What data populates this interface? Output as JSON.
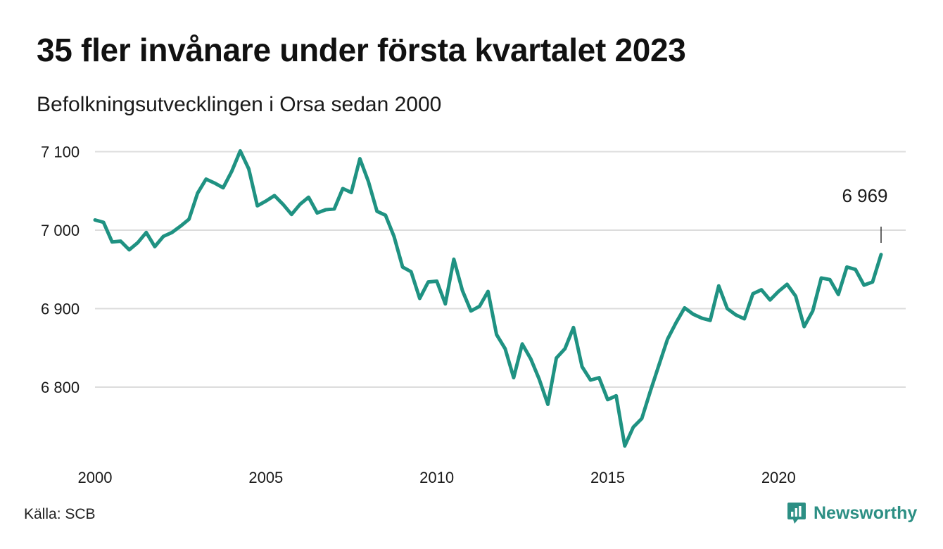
{
  "title": "35 fler invånare under första kvartalet 2023",
  "subtitle": "Befolkningsutvecklingen i Orsa sedan 2000",
  "source": "Källa: SCB",
  "brand": {
    "name": "Newsworthy",
    "icon": "newsworthy-logo-icon",
    "color": "#2c8f84"
  },
  "colors": {
    "line": "#1f9282",
    "grid": "#dcdcdc"
  },
  "chart_data": {
    "type": "line",
    "title": "35 fler invånare under första kvartalet 2023",
    "subtitle": "Befolkningsutvecklingen i Orsa sedan 2000",
    "xlabel": "",
    "ylabel": "",
    "x_ticks": [
      "2000",
      "2005",
      "2010",
      "2015",
      "2020"
    ],
    "y_ticks": [
      "6 800",
      "6 900",
      "7 000",
      "7 100"
    ],
    "ylim": [
      6700,
      7110
    ],
    "xlim": [
      2000,
      2023.3
    ],
    "grid": "horizontal",
    "last_label": "6 969",
    "series": [
      {
        "color": "#1f9282",
        "x": [
          2000.0,
          2000.25,
          2000.5,
          2000.75,
          2001.0,
          2001.25,
          2001.5,
          2001.75,
          2002.0,
          2002.25,
          2002.5,
          2002.75,
          2003.0,
          2003.25,
          2003.5,
          2003.75,
          2004.0,
          2004.25,
          2004.5,
          2004.75,
          2005.0,
          2005.25,
          2005.5,
          2005.75,
          2006.0,
          2006.25,
          2006.5,
          2006.75,
          2007.0,
          2007.25,
          2007.5,
          2007.75,
          2008.0,
          2008.25,
          2008.5,
          2008.75,
          2009.0,
          2009.25,
          2009.5,
          2009.75,
          2010.0,
          2010.25,
          2010.5,
          2010.75,
          2011.0,
          2011.25,
          2011.5,
          2011.75,
          2012.0,
          2012.25,
          2012.5,
          2012.75,
          2013.0,
          2013.25,
          2013.5,
          2013.75,
          2014.0,
          2014.25,
          2014.5,
          2014.75,
          2015.0,
          2015.25,
          2015.5,
          2015.75,
          2016.0,
          2016.25,
          2016.5,
          2016.75,
          2017.0,
          2017.25,
          2017.5,
          2017.75,
          2018.0,
          2018.25,
          2018.5,
          2018.75,
          2019.0,
          2019.25,
          2019.5,
          2019.75,
          2020.0,
          2020.25,
          2020.5,
          2020.75,
          2021.0,
          2021.25,
          2021.5,
          2021.75,
          2022.0,
          2022.25,
          2022.5,
          2022.75,
          2023.0
        ],
        "values": [
          7013,
          7010,
          6985,
          6986,
          6975,
          6984,
          6997,
          6979,
          6992,
          6997,
          7005,
          7014,
          7047,
          7065,
          7060,
          7054,
          7075,
          7101,
          7078,
          7031,
          7037,
          7044,
          7033,
          7020,
          7033,
          7042,
          7022,
          7026,
          7027,
          7053,
          7048,
          7091,
          7062,
          7024,
          7019,
          6992,
          6953,
          6947,
          6913,
          6934,
          6935,
          6906,
          6963,
          6923,
          6897,
          6903,
          6922,
          6867,
          6849,
          6812,
          6855,
          6836,
          6810,
          6778,
          6837,
          6849,
          6876,
          6826,
          6809,
          6812,
          6784,
          6789,
          6725,
          6749,
          6760,
          6795,
          6828,
          6861,
          6882,
          6901,
          6893,
          6888,
          6885,
          6929,
          6900,
          6892,
          6887,
          6919,
          6924,
          6911,
          6922,
          6931,
          6916,
          6877,
          6897,
          6939,
          6937,
          6918,
          6953,
          6950,
          6930,
          6934,
          6969
        ]
      }
    ]
  }
}
